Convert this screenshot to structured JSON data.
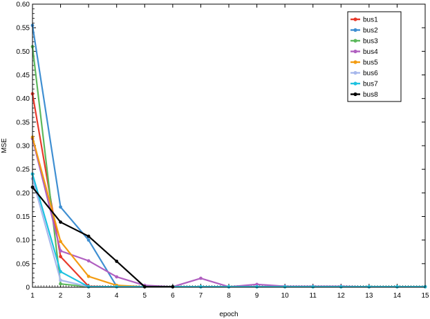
{
  "chart_data": {
    "type": "line",
    "xlabel": "epoch",
    "ylabel": "MSE",
    "xlim": [
      1,
      15
    ],
    "ylim": [
      0,
      0.6
    ],
    "x": [
      1,
      2,
      3,
      4,
      5,
      6,
      7,
      8,
      9,
      10,
      11,
      12,
      13,
      14,
      15
    ],
    "x_ticks": [
      1,
      2,
      3,
      4,
      5,
      6,
      7,
      8,
      9,
      10,
      11,
      12,
      13,
      14,
      15
    ],
    "y_ticks": [
      "0",
      "0.05",
      "0.10",
      "0.15",
      "0.20",
      "0.25",
      "0.30",
      "0.35",
      "0.40",
      "0.45",
      "0.50",
      "0.55",
      "0.60"
    ],
    "legend_position": "top-right",
    "grid": false,
    "series": [
      {
        "name": "bus1",
        "color": "#e8392a",
        "values": [
          0.41,
          0.065,
          0.002,
          0.001,
          0.001,
          0.001,
          0.001,
          0.001,
          0.001,
          0.001,
          0.001,
          0.001,
          0.001,
          0.001,
          0.001
        ]
      },
      {
        "name": "bus2",
        "color": "#3f8fd2",
        "values": [
          0.555,
          0.17,
          0.1,
          0.002,
          0.001,
          0.001,
          0.001,
          0.001,
          0.001,
          0.001,
          0.001,
          0.001,
          0.001,
          0.001,
          0.001
        ]
      },
      {
        "name": "bus3",
        "color": "#5cb85c",
        "values": [
          0.51,
          0.007,
          0.001,
          0.001,
          0.001,
          0.001,
          0.001,
          0.001,
          0.001,
          0.001,
          0.001,
          0.001,
          0.001,
          0.001,
          0.001
        ]
      },
      {
        "name": "bus4",
        "color": "#b05fc0",
        "values": [
          0.315,
          0.077,
          0.056,
          0.022,
          0.004,
          0.001,
          0.019,
          0.001,
          0.006,
          0.002,
          0.002,
          0.002,
          0.001,
          0.001,
          0.001
        ]
      },
      {
        "name": "bus5",
        "color": "#f39c12",
        "values": [
          0.318,
          0.097,
          0.023,
          0.004,
          0.001,
          0.001,
          0.001,
          0.001,
          0.001,
          0.001,
          0.001,
          0.001,
          0.001,
          0.001,
          0.001
        ]
      },
      {
        "name": "bus6",
        "color": "#a8b8ec",
        "values": [
          0.23,
          0.015,
          0.001,
          0.001,
          0.001,
          0.001,
          0.001,
          0.001,
          0.001,
          0.001,
          0.001,
          0.001,
          0.001,
          0.001,
          0.001
        ]
      },
      {
        "name": "bus7",
        "color": "#1ec2e0",
        "values": [
          0.24,
          0.033,
          0.001,
          0.001,
          0.001,
          0.001,
          0.001,
          0.001,
          0.001,
          0.001,
          0.001,
          0.001,
          0.001,
          0.001,
          0.001
        ]
      },
      {
        "name": "bus8",
        "color": "#000000",
        "values": [
          0.212,
          0.138,
          0.108,
          0.055,
          0.001,
          0.001,
          null,
          null,
          null,
          null,
          null,
          null,
          null,
          null,
          null
        ]
      }
    ]
  }
}
